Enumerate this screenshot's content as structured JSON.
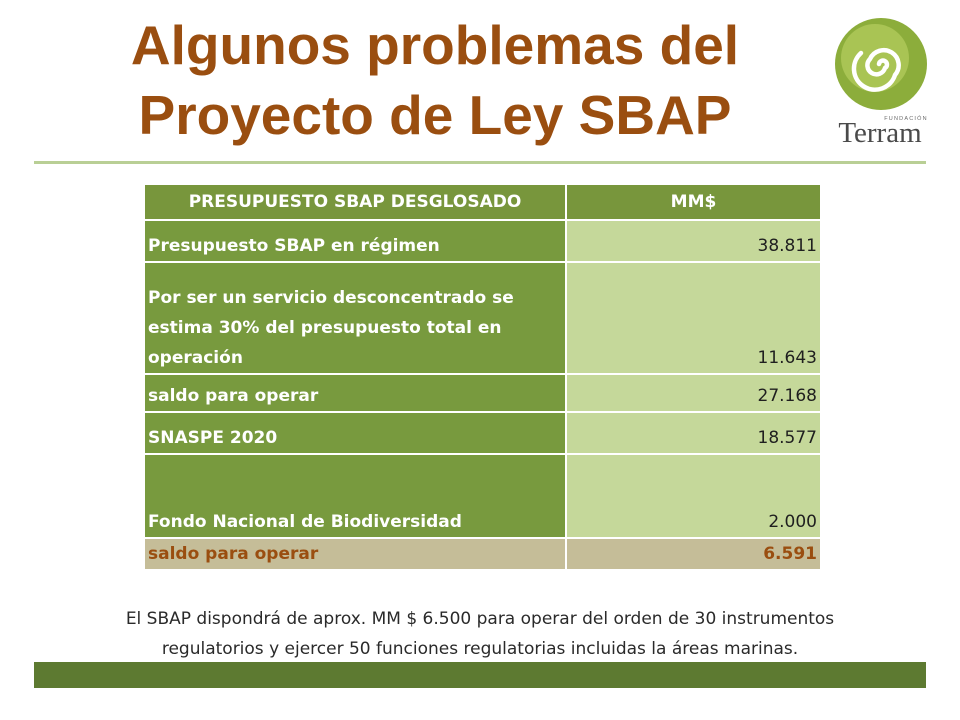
{
  "slide": {
    "title_line1": "Algunos problemas del",
    "title_line2": "Proyecto de Ley SBAP",
    "logo": {
      "icon": "spiral-logo-icon",
      "small_text": "FUNDACIÓN",
      "name": "Terram"
    },
    "table": {
      "headers": [
        "PRESUPUESTO SBAP DESGLOSADO",
        "MM$"
      ],
      "rows": [
        {
          "label": "Presupuesto SBAP en régimen",
          "value": "38.811"
        },
        {
          "label": "Por ser un servicio desconcentrado se estima 30% del presupuesto total en operación",
          "value": "11.643"
        },
        {
          "label": "saldo para operar",
          "value": "27.168"
        },
        {
          "label": "SNASPE 2020",
          "value": "18.577"
        },
        {
          "label": "Fondo Nacional de Biodiversidad",
          "value": "2.000"
        },
        {
          "label": "saldo para operar",
          "value": "6.591"
        }
      ]
    },
    "note_line1": "El SBAP dispondrá de  aprox. MM $ 6.500 para operar  del orden de 30 instrumentos",
    "note_line2": "regulatorios y ejercer 50 funciones regulatorias incluidas la áreas marinas.",
    "colors": {
      "title": "#9a4e10",
      "header_bg": "#78963c",
      "value_bg": "#c5d89a",
      "total_bg": "#c5bd98",
      "footer_bar": "#5d7a31"
    }
  }
}
